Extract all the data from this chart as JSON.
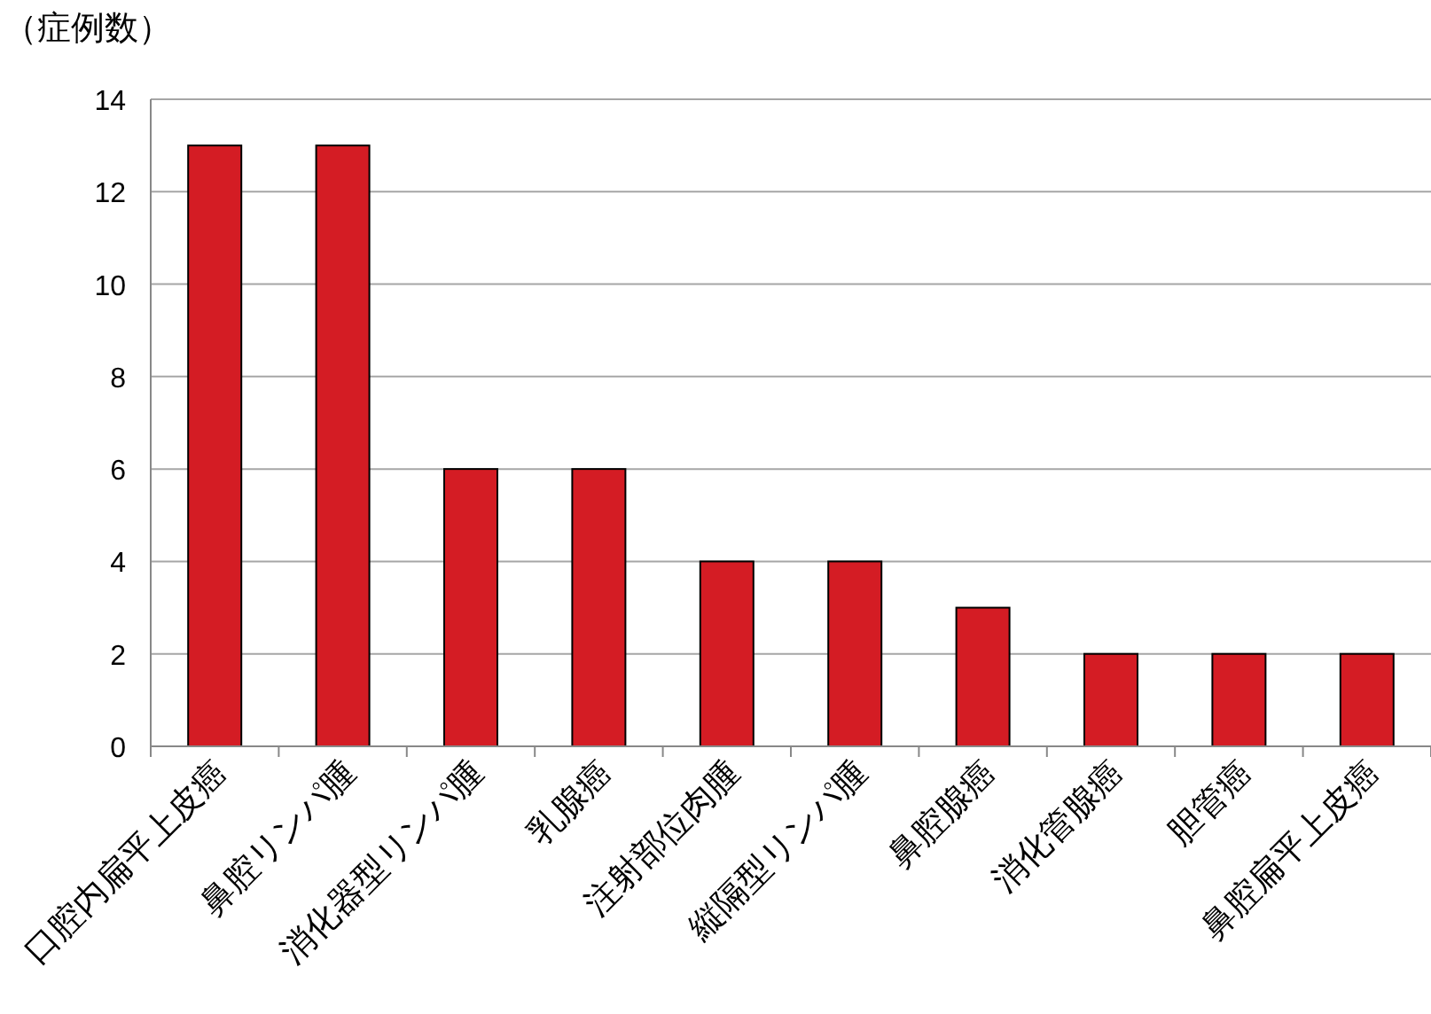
{
  "chart_data": {
    "type": "bar",
    "ylabel": "（症例数）",
    "categories": [
      "口腔内扁平上皮癌",
      "鼻腔リンパ腫",
      "消化器型リンパ腫",
      "乳腺癌",
      "注射部位肉腫",
      "縦隔型リンパ腫",
      "鼻腔腺癌",
      "消化管腺癌",
      "胆管癌",
      "鼻腔扁平上皮癌"
    ],
    "values": [
      13,
      13,
      6,
      6,
      4,
      4,
      3,
      2,
      2,
      2
    ],
    "color": "#d41c24",
    "ylim": [
      0,
      14
    ],
    "yticks": [
      0,
      2,
      4,
      6,
      8,
      10,
      12,
      14
    ],
    "grid": "y"
  }
}
